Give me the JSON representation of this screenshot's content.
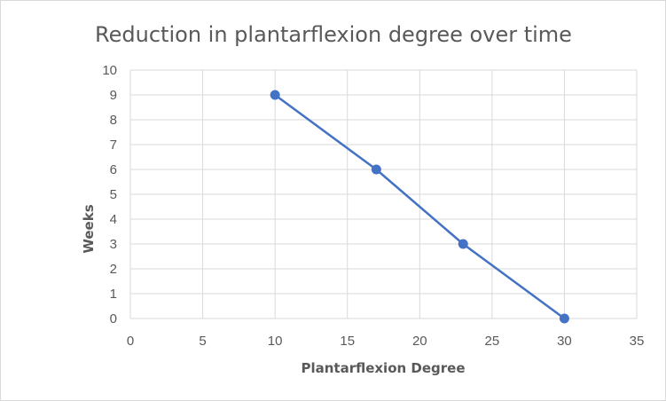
{
  "chart_data": {
    "type": "scatter",
    "title": "Reduction  in plantarflexion degree over time",
    "xlabel": "Plantarflexion Degree",
    "ylabel": "Weeks",
    "xlim": [
      0,
      35
    ],
    "ylim": [
      0,
      10
    ],
    "xticks": [
      "0",
      "5",
      "10",
      "15",
      "20",
      "25",
      "30",
      "35"
    ],
    "yticks": [
      "0",
      "1",
      "2",
      "3",
      "4",
      "5",
      "6",
      "7",
      "8",
      "9",
      "10"
    ],
    "grid": true,
    "legend": "none",
    "series": [
      {
        "x": [
          10,
          17,
          23,
          30
        ],
        "y": [
          9,
          6,
          3,
          0
        ],
        "color": "#4472c4",
        "lines": true,
        "markers": true
      }
    ]
  }
}
